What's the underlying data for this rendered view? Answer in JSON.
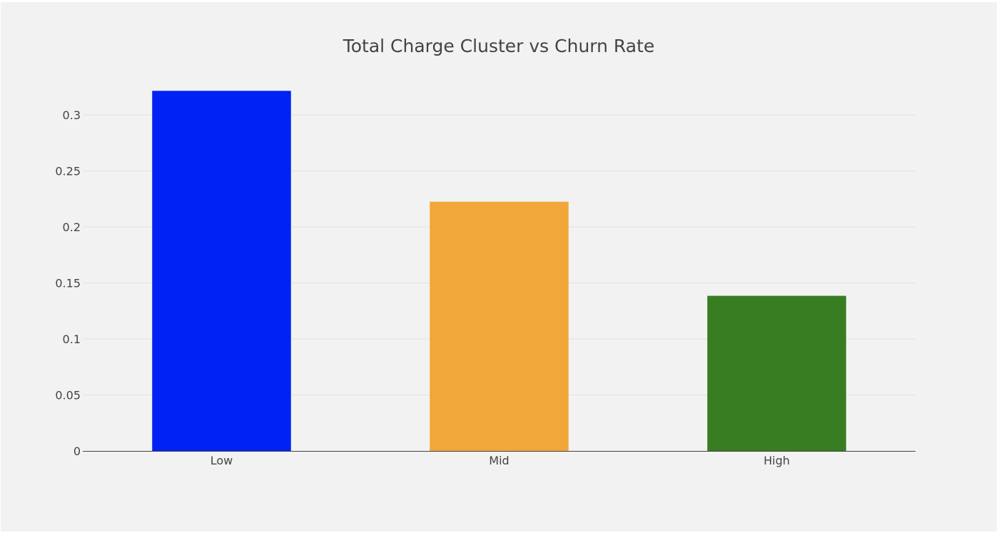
{
  "chart_data": {
    "type": "bar",
    "title": "Total Charge Cluster vs Churn Rate",
    "xlabel": "",
    "ylabel": "",
    "categories": [
      "Low",
      "Mid",
      "High"
    ],
    "values": [
      0.3215,
      0.2225,
      0.1385
    ],
    "colors": [
      "#0022f5",
      "#f2a73b",
      "#387d22"
    ],
    "ylim": [
      0,
      0.3217
    ],
    "yticks": [
      0,
      0.05,
      0.1,
      0.15,
      0.2,
      0.25,
      0.3
    ],
    "ytick_labels": [
      "0",
      "0.05",
      "0.1",
      "0.15",
      "0.2",
      "0.25",
      "0.3"
    ],
    "grid": true,
    "legend": "none",
    "background": "#f2f2f2"
  }
}
